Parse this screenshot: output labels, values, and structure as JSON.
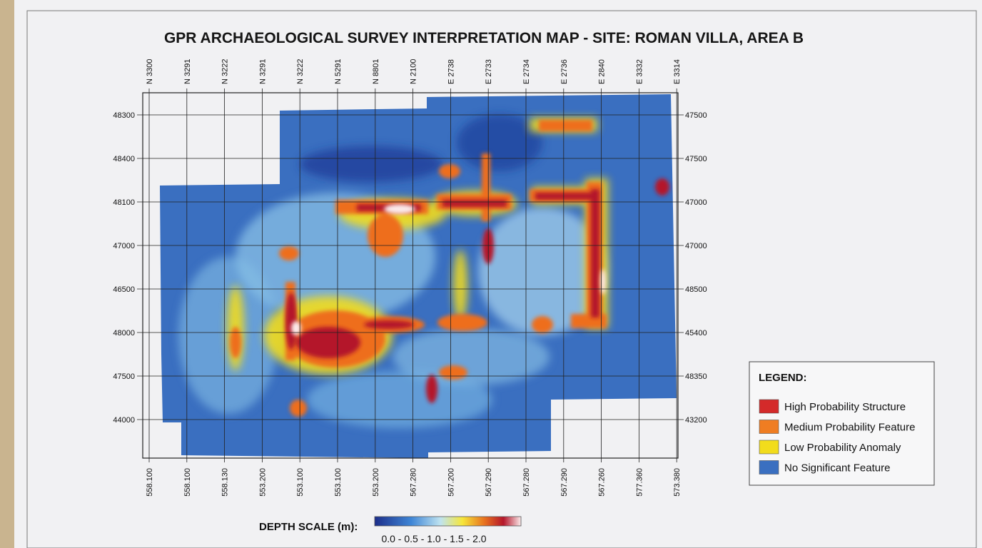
{
  "title": "GPR ARCHAEOLOGICAL SURVEY INTERPRETATION MAP - SITE: ROMAN VILLA, AREA B",
  "top_labels": [
    "N 3300",
    "N 3291",
    "N 3222",
    "N 3291",
    "N 3222",
    "N 5291",
    "N 8801",
    "N 2100",
    "E 2738",
    "E 2733",
    "E 2734",
    "E 2736",
    "E 2840",
    "E 3332",
    "E 3314"
  ],
  "left_labels": [
    "48300",
    "48400",
    "48100",
    "47000",
    "46500",
    "48000",
    "47500",
    "44000"
  ],
  "right_labels": [
    "47500",
    "47500",
    "47000",
    "47000",
    "48500",
    "45400",
    "48350",
    "43200"
  ],
  "bottom_labels": [
    "558.100",
    "558.100",
    "558.130",
    "553.200",
    "553.100",
    "553.100",
    "553.200",
    "567.280",
    "567.200",
    "567.290",
    "567.280",
    "567.290",
    "567.260",
    "577.360",
    "573.380"
  ],
  "legend": {
    "title": "LEGEND:",
    "items": [
      {
        "label": "High Probability Structure",
        "color": "#d42a2a"
      },
      {
        "label": "Medium Probability Feature",
        "color": "#ef7d22"
      },
      {
        "label": "Low Probability Anomaly",
        "color": "#f2dc1c"
      },
      {
        "label": "No Significant Feature",
        "color": "#3a6fc0"
      }
    ]
  },
  "depth_scale": {
    "label": "DEPTH SCALE (m):",
    "ticks": "0.0 - 0.5 - 1.0 - 1.5 - 2.0"
  }
}
